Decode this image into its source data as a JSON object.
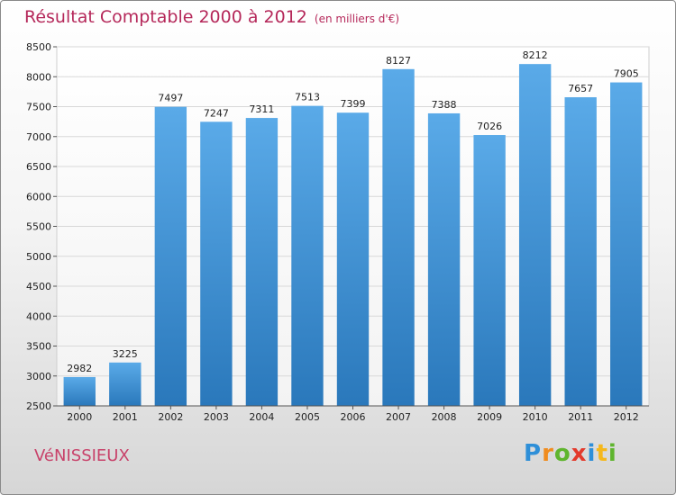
{
  "title": "Résultat Comptable 2000 à 2012",
  "subtitle": "(en milliers d'€)",
  "city": "VéNISSIEUX",
  "logo": {
    "letters": [
      "P",
      "r",
      "o",
      "x",
      "i",
      "t",
      "i"
    ],
    "colors": [
      "#2e8fd8",
      "#f08c1e",
      "#5fb52e",
      "#e33a2c",
      "#2e8fd8",
      "#f5b81c",
      "#5fb52e"
    ]
  },
  "colors": {
    "bar_top": "#5aaae8",
    "bar_bottom": "#2a78bb",
    "title": "#b5285a"
  },
  "chart_data": {
    "type": "bar",
    "title": "Résultat Comptable 2000 à 2012",
    "xlabel": "",
    "ylabel": "",
    "categories": [
      "2000",
      "2001",
      "2002",
      "2003",
      "2004",
      "2005",
      "2006",
      "2007",
      "2008",
      "2009",
      "2010",
      "2011",
      "2012"
    ],
    "values": [
      2982,
      3225,
      7497,
      7247,
      7311,
      7513,
      7399,
      8127,
      7388,
      7026,
      8212,
      7657,
      7905
    ],
    "ylim": [
      2500,
      8500
    ],
    "yticks": [
      2500,
      3000,
      3500,
      4000,
      4500,
      5000,
      5500,
      6000,
      6500,
      7000,
      7500,
      8000,
      8500
    ],
    "grid": true
  }
}
